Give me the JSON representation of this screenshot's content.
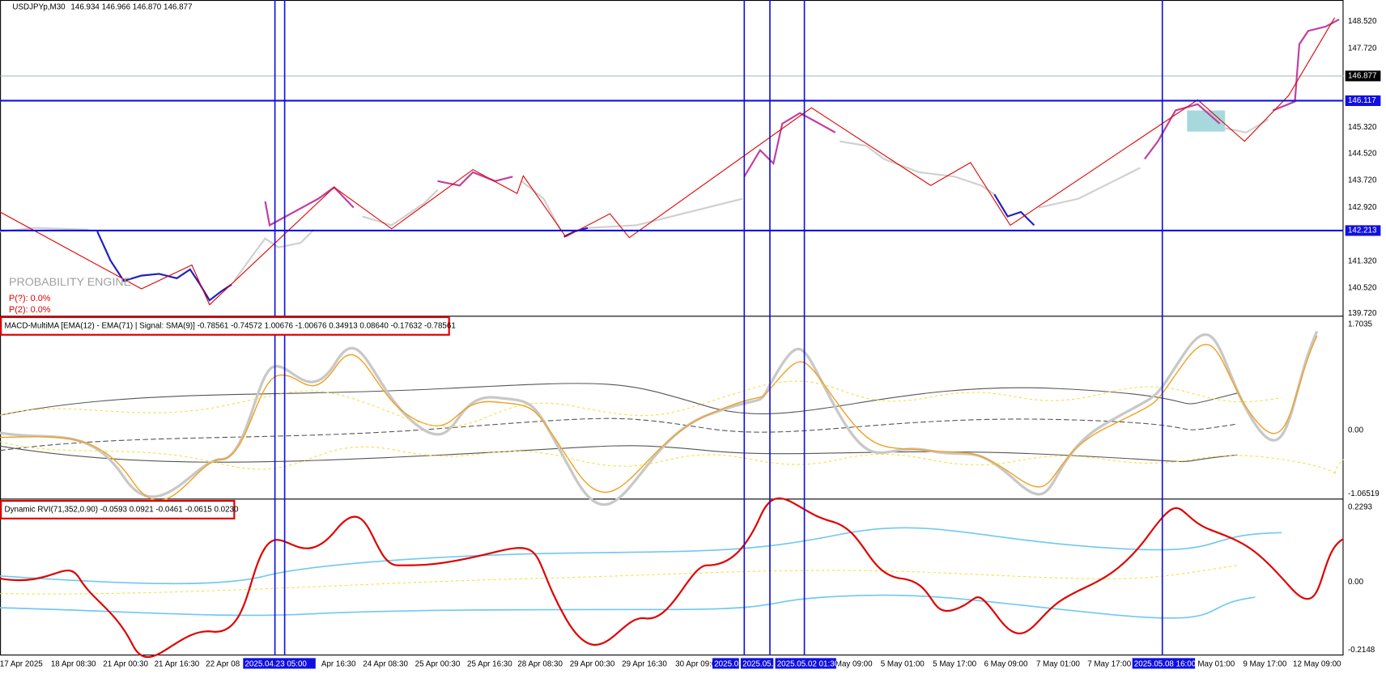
{
  "header": {
    "symbol": "USDJPYp,M30",
    "quote": "146.934 146.966 146.870 146.877"
  },
  "price_axis": {
    "labels": [
      "148.520",
      "147.720",
      "146.877",
      "146.117",
      "145.320",
      "144.520",
      "143.720",
      "142.920",
      "142.213",
      "141.320",
      "140.520",
      "139.720"
    ]
  },
  "probability_engine": {
    "title": "PROBABILITY ENGINE",
    "lines": [
      "P(?): 0.0%",
      "P(2): 0.0%"
    ]
  },
  "macd": {
    "label": "MACD-MultiMA [EMA(12) - EMA(71) | Signal: SMA(9)] -0.78561 -0.74572 1.00676 -1.00676 0.34913 0.08640 -0.17632 -0.78561",
    "axis": [
      "1.7035",
      "0.00",
      "-1.06519"
    ]
  },
  "rvi": {
    "label": "Dynamic RVI(71,352,0.90) -0.0593 0.0921 -0.0461 -0.0615 0.0230",
    "axis": [
      "0.2293",
      "0.00",
      "-0.2148"
    ]
  },
  "time_axis": {
    "labels": [
      "17 Apr 2025",
      "18 Apr 08:30",
      "21 Apr 00:30",
      "21 Apr 16:30",
      "22 Apr 08",
      "Apr 16:30",
      "24 Apr 08:30",
      "25 Apr 00:30",
      "25 Apr 16:30",
      "28 Apr 08:30",
      "29 Apr 00:30",
      "29 Apr 16:30",
      "30 Apr 09:0",
      "May 09:00",
      "5 May 01:00",
      "5 May 17:00",
      "6 May 09:00",
      "7 May 01:00",
      "7 May 17:00",
      "May 01:00",
      "9 May 17:00",
      "12 May 09:00"
    ],
    "highlighted": [
      "2025.04.23 05:00",
      "2025.0",
      "2025.05.0",
      "2025.05.02 01:30",
      "2025.05.08 16:00"
    ]
  }
}
